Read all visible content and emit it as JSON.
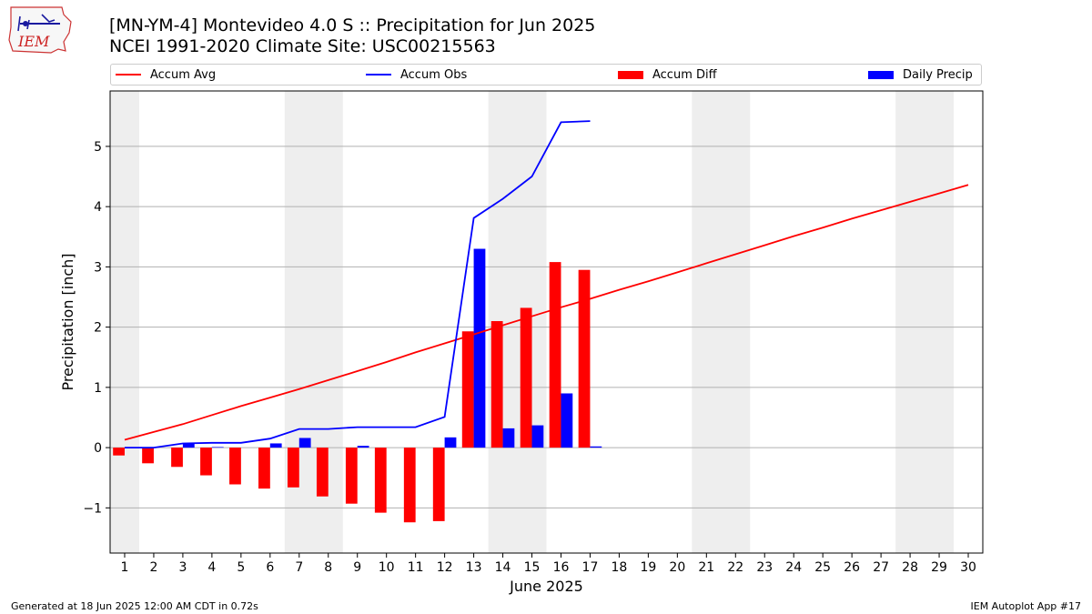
{
  "header": {
    "title_line1": "[MN-YM-4] Montevideo 4.0 S :: Precipitation for Jun 2025",
    "title_line2": "NCEI 1991-2020 Climate Site: USC00215563",
    "logo_text": "IEM"
  },
  "footer": {
    "left": "Generated at 18 Jun 2025 12:00 AM CDT in 0.72s",
    "right": "IEM Autoplot App #17"
  },
  "colors": {
    "avg": "#ff0000",
    "obs": "#0000ff",
    "diff": "#ff0000",
    "daily": "#0000ff",
    "weekend_shade": "#eeeeee",
    "grid": "#b0b0b0"
  },
  "chart_data": {
    "type": "bar",
    "title": "[MN-YM-4] Montevideo 4.0 S :: Precipitation for Jun 2025",
    "subtitle": "NCEI 1991-2020 Climate Site: USC00215563",
    "xlabel": "June 2025",
    "ylabel": "Precipitation [inch]",
    "xlim": [
      0.5,
      30.5
    ],
    "ylim": [
      -1.75,
      5.92
    ],
    "yticks": [
      -1,
      0,
      1,
      2,
      3,
      4,
      5
    ],
    "ytick_labels": [
      "−1",
      "0",
      "1",
      "2",
      "3",
      "4",
      "5"
    ],
    "x": [
      1,
      2,
      3,
      4,
      5,
      6,
      7,
      8,
      9,
      10,
      11,
      12,
      13,
      14,
      15,
      16,
      17,
      18,
      19,
      20,
      21,
      22,
      23,
      24,
      25,
      26,
      27,
      28,
      29,
      30
    ],
    "xtick_labels": [
      "1",
      "2",
      "3",
      "4",
      "5",
      "6",
      "7",
      "8",
      "9",
      "10",
      "11",
      "12",
      "13",
      "14",
      "15",
      "16",
      "17",
      "18",
      "19",
      "20",
      "21",
      "22",
      "23",
      "24",
      "25",
      "26",
      "27",
      "28",
      "29",
      "30"
    ],
    "grid": "y",
    "legend_position": "top",
    "shaded_days": [
      [
        0.5,
        1.5
      ],
      [
        6.5,
        8.5
      ],
      [
        13.5,
        15.5
      ],
      [
        20.5,
        22.5
      ],
      [
        27.5,
        29.5
      ]
    ],
    "series": [
      {
        "name": "Accum Avg",
        "kind": "line",
        "color": "#ff0000",
        "x": [
          1,
          2,
          3,
          4,
          5,
          6,
          7,
          8,
          9,
          10,
          11,
          12,
          13,
          14,
          15,
          16,
          17,
          18,
          19,
          20,
          21,
          22,
          23,
          24,
          25,
          26,
          27,
          28,
          29,
          30
        ],
        "values": [
          0.13,
          0.26,
          0.39,
          0.54,
          0.69,
          0.83,
          0.97,
          1.12,
          1.27,
          1.42,
          1.58,
          1.73,
          1.88,
          2.03,
          2.18,
          2.33,
          2.47,
          2.62,
          2.76,
          2.91,
          3.06,
          3.21,
          3.36,
          3.51,
          3.65,
          3.8,
          3.94,
          4.08,
          4.22,
          4.36
        ]
      },
      {
        "name": "Accum Obs",
        "kind": "line",
        "color": "#0000ff",
        "x": [
          1,
          2,
          3,
          4,
          5,
          6,
          7,
          8,
          9,
          10,
          11,
          12,
          13,
          14,
          15,
          16,
          17
        ],
        "values": [
          0.0,
          0.0,
          0.07,
          0.08,
          0.08,
          0.15,
          0.31,
          0.31,
          0.34,
          0.34,
          0.34,
          0.51,
          3.81,
          4.13,
          4.5,
          5.4,
          5.42
        ]
      },
      {
        "name": "Accum Diff",
        "kind": "bar",
        "color": "#ff0000",
        "x": [
          1,
          2,
          3,
          4,
          5,
          6,
          7,
          8,
          9,
          10,
          11,
          12,
          13,
          14,
          15,
          16,
          17
        ],
        "values": [
          -0.13,
          -0.26,
          -0.32,
          -0.46,
          -0.61,
          -0.68,
          -0.66,
          -0.81,
          -0.93,
          -1.08,
          -1.24,
          -1.22,
          1.93,
          2.1,
          2.32,
          3.08,
          2.95
        ]
      },
      {
        "name": "Daily Precip",
        "kind": "bar",
        "color": "#0000ff",
        "x": [
          1,
          2,
          3,
          4,
          5,
          6,
          7,
          8,
          9,
          10,
          11,
          12,
          13,
          14,
          15,
          16,
          17
        ],
        "values": [
          0.0,
          0.0,
          0.07,
          0.01,
          0.0,
          0.07,
          0.16,
          0.0,
          0.03,
          0.0,
          0.0,
          0.17,
          3.3,
          0.32,
          0.37,
          0.9,
          0.02
        ]
      }
    ]
  }
}
